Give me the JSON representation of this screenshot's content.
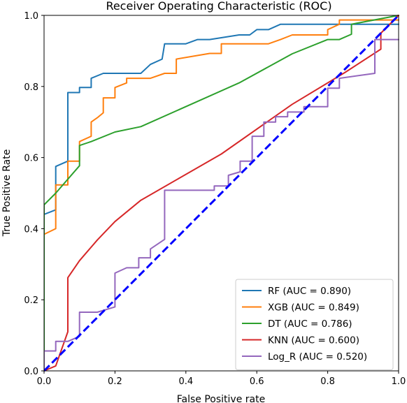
{
  "chart_data": {
    "type": "line",
    "title": "Receiver Operating Characteristic (ROC)",
    "xlabel": "False Positive rate",
    "ylabel": "True Positive Rate",
    "xlim": [
      0,
      1
    ],
    "ylim": [
      0,
      1
    ],
    "xticks": [
      "0.0",
      "0.2",
      "0.4",
      "0.6",
      "0.8",
      "1.0"
    ],
    "yticks": [
      "0.0",
      "0.2",
      "0.4",
      "0.6",
      "0.8",
      "1.0"
    ],
    "grid": false,
    "legend_position": "lower-right",
    "series": [
      {
        "name": "RF (AUC = 0.890)",
        "color": "#1f77b4",
        "points": [
          [
            0,
            0
          ],
          [
            0,
            0.44
          ],
          [
            0.033,
            0.453
          ],
          [
            0.033,
            0.575
          ],
          [
            0.067,
            0.59
          ],
          [
            0.067,
            0.783
          ],
          [
            0.1,
            0.783
          ],
          [
            0.1,
            0.797
          ],
          [
            0.133,
            0.797
          ],
          [
            0.133,
            0.823
          ],
          [
            0.167,
            0.837
          ],
          [
            0.273,
            0.837
          ],
          [
            0.3,
            0.862
          ],
          [
            0.333,
            0.877
          ],
          [
            0.34,
            0.92
          ],
          [
            0.4,
            0.92
          ],
          [
            0.433,
            0.932
          ],
          [
            0.467,
            0.932
          ],
          [
            0.55,
            0.945
          ],
          [
            0.58,
            0.945
          ],
          [
            0.6,
            0.96
          ],
          [
            0.633,
            0.96
          ],
          [
            0.667,
            0.975
          ],
          [
            1,
            0.975
          ]
        ]
      },
      {
        "name": "XGB (AUC = 0.849)",
        "color": "#ff7f0e",
        "points": [
          [
            0,
            0
          ],
          [
            0,
            0.384
          ],
          [
            0.033,
            0.4
          ],
          [
            0.033,
            0.523
          ],
          [
            0.067,
            0.523
          ],
          [
            0.067,
            0.59
          ],
          [
            0.1,
            0.59
          ],
          [
            0.1,
            0.645
          ],
          [
            0.133,
            0.66
          ],
          [
            0.133,
            0.7
          ],
          [
            0.15,
            0.712
          ],
          [
            0.167,
            0.726
          ],
          [
            0.167,
            0.768
          ],
          [
            0.2,
            0.768
          ],
          [
            0.2,
            0.797
          ],
          [
            0.233,
            0.81
          ],
          [
            0.233,
            0.823
          ],
          [
            0.3,
            0.823
          ],
          [
            0.34,
            0.837
          ],
          [
            0.373,
            0.837
          ],
          [
            0.373,
            0.877
          ],
          [
            0.467,
            0.893
          ],
          [
            0.5,
            0.893
          ],
          [
            0.5,
            0.92
          ],
          [
            0.633,
            0.92
          ],
          [
            0.667,
            0.932
          ],
          [
            0.7,
            0.945
          ],
          [
            0.8,
            0.945
          ],
          [
            0.8,
            0.96
          ],
          [
            0.833,
            0.975
          ],
          [
            0.833,
            0.987
          ],
          [
            1,
            0.987
          ]
        ]
      },
      {
        "name": "DT (AUC = 0.786)",
        "color": "#2ca02c",
        "points": [
          [
            0,
            0
          ],
          [
            0,
            0.467
          ],
          [
            0.033,
            0.5
          ],
          [
            0.1,
            0.577
          ],
          [
            0.1,
            0.634
          ],
          [
            0.133,
            0.645
          ],
          [
            0.2,
            0.672
          ],
          [
            0.273,
            0.687
          ],
          [
            0.55,
            0.81
          ],
          [
            0.7,
            0.892
          ],
          [
            0.8,
            0.932
          ],
          [
            0.833,
            0.932
          ],
          [
            0.867,
            0.947
          ],
          [
            0.867,
            0.975
          ],
          [
            1,
            1
          ]
        ]
      },
      {
        "name": "KNN (AUC = 0.600)",
        "color": "#d62728",
        "points": [
          [
            0,
            0
          ],
          [
            0.033,
            0.014
          ],
          [
            0.067,
            0.11
          ],
          [
            0.067,
            0.262
          ],
          [
            0.1,
            0.31
          ],
          [
            0.15,
            0.368
          ],
          [
            0.2,
            0.42
          ],
          [
            0.273,
            0.48
          ],
          [
            0.5,
            0.61
          ],
          [
            0.7,
            0.75
          ],
          [
            0.85,
            0.84
          ],
          [
            0.95,
            0.905
          ],
          [
            0.95,
            0.95
          ],
          [
            1,
            1
          ]
        ]
      },
      {
        "name": "Log_R (AUC = 0.520)",
        "color": "#9467bd",
        "points": [
          [
            0,
            0
          ],
          [
            0,
            0.056
          ],
          [
            0.033,
            0.056
          ],
          [
            0.033,
            0.083
          ],
          [
            0.067,
            0.083
          ],
          [
            0.1,
            0.097
          ],
          [
            0.1,
            0.165
          ],
          [
            0.15,
            0.165
          ],
          [
            0.2,
            0.18
          ],
          [
            0.2,
            0.275
          ],
          [
            0.233,
            0.29
          ],
          [
            0.267,
            0.29
          ],
          [
            0.267,
            0.318
          ],
          [
            0.3,
            0.318
          ],
          [
            0.3,
            0.343
          ],
          [
            0.34,
            0.37
          ],
          [
            0.34,
            0.508
          ],
          [
            0.48,
            0.508
          ],
          [
            0.48,
            0.52
          ],
          [
            0.52,
            0.52
          ],
          [
            0.52,
            0.55
          ],
          [
            0.553,
            0.56
          ],
          [
            0.553,
            0.59
          ],
          [
            0.587,
            0.59
          ],
          [
            0.587,
            0.66
          ],
          [
            0.62,
            0.66
          ],
          [
            0.62,
            0.7
          ],
          [
            0.653,
            0.7
          ],
          [
            0.653,
            0.715
          ],
          [
            0.687,
            0.715
          ],
          [
            0.687,
            0.728
          ],
          [
            0.733,
            0.728
          ],
          [
            0.733,
            0.743
          ],
          [
            0.8,
            0.743
          ],
          [
            0.8,
            0.795
          ],
          [
            0.833,
            0.795
          ],
          [
            0.833,
            0.823
          ],
          [
            0.933,
            0.837
          ],
          [
            0.933,
            0.932
          ],
          [
            1,
            0.932
          ]
        ]
      },
      {
        "name": "",
        "color": "#0000ff",
        "dashed": true,
        "points": [
          [
            0,
            0
          ],
          [
            1,
            1
          ]
        ]
      }
    ]
  }
}
